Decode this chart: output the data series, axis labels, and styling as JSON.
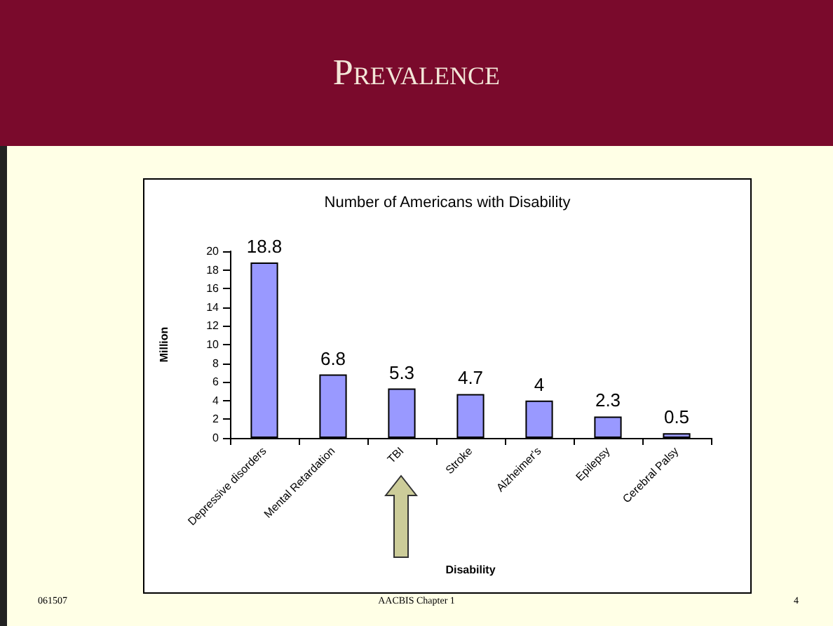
{
  "chart_data": {
    "type": "bar",
    "title": "Prevalence",
    "subtitle": "Number of Americans with Disability",
    "categories": [
      "Depressive disorders",
      "Mental Retardation",
      "TBI",
      "Stroke",
      "Alzheimer's",
      "Epilepsy",
      "Cerebral Palsy"
    ],
    "values": [
      18.8,
      6.8,
      5.3,
      4.7,
      4,
      2.3,
      0.5
    ],
    "color": "#9999ff",
    "data_labels": true,
    "xlabel": "Disability",
    "ylabel": "Million",
    "ylim": [
      0,
      20
    ],
    "yticks": [
      0,
      2,
      4,
      6,
      8,
      10,
      12,
      14,
      16,
      18,
      20
    ],
    "grid": false,
    "annotations": [
      "061507",
      "AACBIS Chapter 1",
      "4"
    ]
  }
}
